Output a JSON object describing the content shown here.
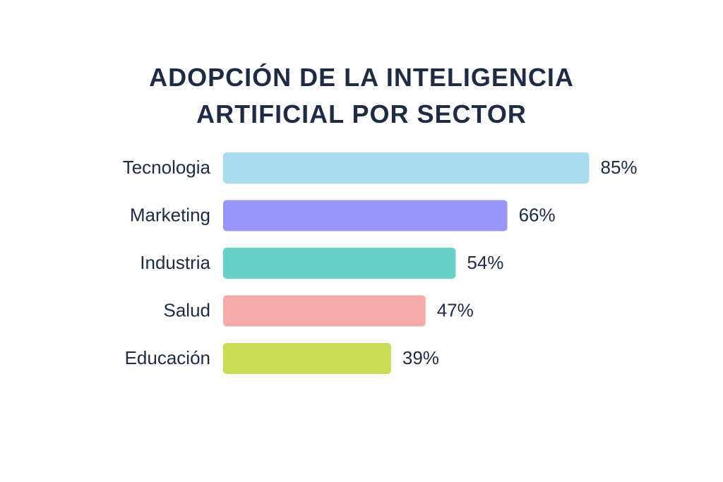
{
  "chart_data": {
    "type": "bar",
    "orientation": "horizontal",
    "title": "ADOPCIÓN DE LA INTELIGENCIA ARTIFICIAL POR SECTOR",
    "categories": [
      "Tecnologia",
      "Marketing",
      "Industria",
      "Salud",
      "Educación"
    ],
    "values": [
      85,
      66,
      54,
      47,
      39
    ],
    "value_labels": [
      "85%",
      "66%",
      "54%",
      "47%",
      "39%"
    ],
    "colors": [
      "#a8daf0",
      "#9896f8",
      "#67d0c8",
      "#f4aaa6",
      "#c9dc55"
    ]
  }
}
